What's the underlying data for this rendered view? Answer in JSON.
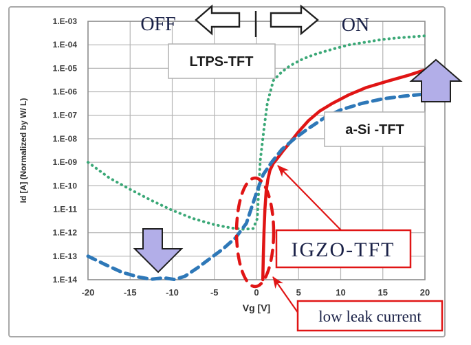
{
  "figure": {
    "description": "Transfer characteristics comparison of LTPS, a-Si and IGZO thin-film transistors",
    "border_color": "#a8a8a8",
    "background": "#ffffff"
  },
  "annotations": {
    "off_label": "OFF",
    "on_label": "ON",
    "separator": "|",
    "ltps_label": "LTPS-TFT",
    "asi_label": "a-Si -TFT",
    "igzo_label": "IGZO-TFT",
    "leak_label": "low leak current"
  },
  "icons": {
    "off_direction": "hollow-left-arrow",
    "on_direction": "hollow-right-arrow",
    "off_current_drop": "filled-down-arrow",
    "on_current_rise": "filled-up-arrow",
    "leak_region": "red-dashed-ellipse"
  },
  "colors": {
    "grid": "#b5b5b5",
    "plot_border": "#8f8f8f",
    "accent_red": "#e01515",
    "purple_arrow_fill": "#b2aee8",
    "arrow_outline": "#1f1f1f",
    "tick_text": "#3d3d3d",
    "annotation_text": "#1a2147"
  },
  "chart_data": {
    "type": "line",
    "title": "",
    "xlabel": "Vg [V]",
    "ylabel": "Id [A] (Normalized by W/ L)",
    "xlim": [
      -20,
      20
    ],
    "x_ticks": [
      -20,
      -15,
      -10,
      -5,
      0,
      5,
      10,
      15,
      20
    ],
    "y_tick_labels": [
      "1.E-03",
      "1.E-04",
      "1.E-05",
      "1.E-06",
      "1.E-07",
      "1.E-08",
      "1.E-09",
      "1.E-10",
      "1.E-11",
      "1.E-12",
      "1.E-13",
      "1.E-14"
    ],
    "y_log_top_exponent": -3,
    "y_decades": 11,
    "grid": true,
    "legend_position": "none (labels drawn as callout boxes on plot)",
    "series": [
      {
        "name": "LTPS-TFT",
        "style": "dotted",
        "color": "#3BA877",
        "points": [
          [
            -20,
            1e-09
          ],
          [
            -17.5,
            2.2e-10
          ],
          [
            -15,
            7e-11
          ],
          [
            -12.5,
            2.4e-11
          ],
          [
            -10,
            9e-12
          ],
          [
            -7.5,
            4e-12
          ],
          [
            -5,
            2.2e-12
          ],
          [
            -3,
            1.6e-12
          ],
          [
            -1.5,
            1.4e-12
          ],
          [
            -0.4,
            1.5e-12
          ],
          [
            0.1,
            4e-12
          ],
          [
            0.3,
            1.2e-10
          ],
          [
            0.45,
            1.2e-09
          ],
          [
            0.65,
            5e-09
          ],
          [
            0.9,
            2.8e-08
          ],
          [
            1.3,
            3.4e-07
          ],
          [
            2,
            3e-06
          ],
          [
            3,
            7e-06
          ],
          [
            4,
            1.3e-05
          ],
          [
            5.5,
            2.5e-05
          ],
          [
            7,
            4e-05
          ],
          [
            9,
            6.5e-05
          ],
          [
            11,
            0.0001
          ],
          [
            13,
            0.00013
          ],
          [
            15,
            0.00017
          ],
          [
            17,
            0.0002
          ],
          [
            20,
            0.00024
          ]
        ]
      },
      {
        "name": "IGZO-TFT",
        "style": "solid",
        "color": "#E01515",
        "points": [
          [
            0.75,
            1e-14
          ],
          [
            0.82,
            1.2e-13
          ],
          [
            0.9,
            1.2e-12
          ],
          [
            1.0,
            1e-11
          ],
          [
            1.15,
            6e-11
          ],
          [
            1.35,
            1.8e-10
          ],
          [
            1.6,
            4.5e-10
          ],
          [
            2.0,
            9e-10
          ],
          [
            2.5,
            1.5e-09
          ],
          [
            3.2,
            3.2e-09
          ],
          [
            4,
            7e-09
          ],
          [
            5,
            2e-08
          ],
          [
            6.2,
            6e-08
          ],
          [
            7.5,
            1.5e-07
          ],
          [
            9,
            3.2e-07
          ],
          [
            11,
            7.5e-07
          ],
          [
            13,
            1.5e-06
          ],
          [
            15.5,
            2.8e-06
          ],
          [
            18,
            5e-06
          ],
          [
            20,
            8.5e-06
          ]
        ]
      },
      {
        "name": "a-Si-TFT",
        "style": "dashed",
        "color": "#2E78B8",
        "points": [
          [
            -20,
            1e-13
          ],
          [
            -18,
            4.5e-14
          ],
          [
            -16,
            2.1e-14
          ],
          [
            -14,
            1.3e-14
          ],
          [
            -12.5,
            1.05e-14
          ],
          [
            -11,
            1.2e-14
          ],
          [
            -9.7,
            1.02e-14
          ],
          [
            -8.5,
            1.4e-14
          ],
          [
            -7,
            3.2e-14
          ],
          [
            -5.5,
            8e-14
          ],
          [
            -4,
            2e-13
          ],
          [
            -2.5,
            6e-13
          ],
          [
            -1.2,
            2.5e-12
          ],
          [
            0,
            5e-11
          ],
          [
            0.8,
            3e-10
          ],
          [
            1.8,
            1e-09
          ],
          [
            3,
            3.5e-09
          ],
          [
            4.5,
            1e-08
          ],
          [
            6,
            2.5e-08
          ],
          [
            8,
            7.5e-08
          ],
          [
            10,
            1.7e-07
          ],
          [
            12.5,
            3.2e-07
          ],
          [
            15,
            5e-07
          ],
          [
            17.5,
            6.5e-07
          ],
          [
            20,
            8e-07
          ]
        ]
      }
    ]
  }
}
